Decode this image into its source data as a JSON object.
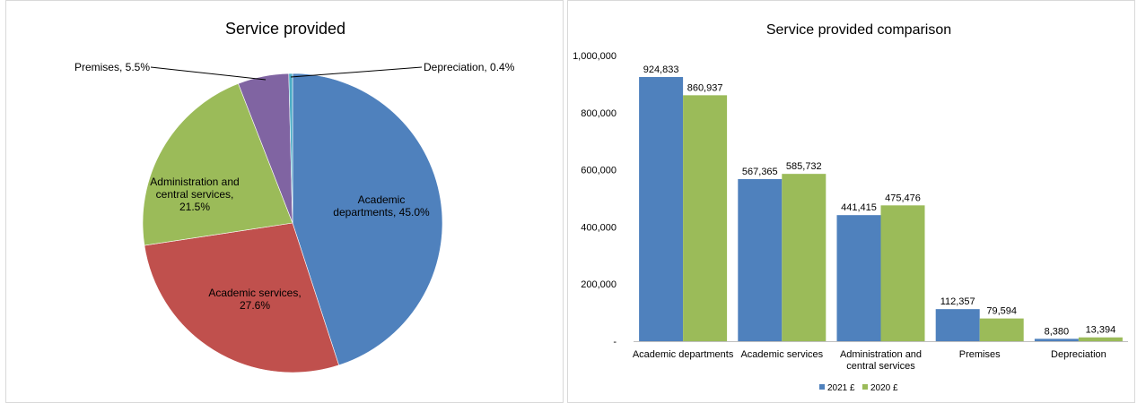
{
  "chart_data": [
    {
      "type": "pie",
      "title": "Service provided",
      "slices": [
        {
          "label_lines": [
            "Academic",
            "departments, 45.0%"
          ],
          "value": 45.0,
          "color": "#4f81bd"
        },
        {
          "label_lines": [
            "Academic services,",
            "27.6%"
          ],
          "value": 27.6,
          "color": "#c0504d"
        },
        {
          "label_lines": [
            "Administration and",
            "central services,",
            "21.5%"
          ],
          "value": 21.5,
          "color": "#9bbb59"
        },
        {
          "label_lines": [
            "Premises, 5.5%"
          ],
          "value": 5.5,
          "color": "#8064a2"
        },
        {
          "label_lines": [
            "Depreciation, 0.4%"
          ],
          "value": 0.4,
          "color": "#4bacc6"
        }
      ]
    },
    {
      "type": "bar",
      "title": "Service provided comparison",
      "categories": [
        [
          "Academic departments"
        ],
        [
          "Academic services"
        ],
        [
          "Administration and",
          "central services"
        ],
        [
          "Premises"
        ],
        [
          "Depreciation"
        ]
      ],
      "series": [
        {
          "name": "2021 £",
          "color": "#4f81bd",
          "values": [
            924833,
            567365,
            441415,
            112357,
            8380
          ],
          "labels": [
            "924,833",
            "567,365",
            "441,415",
            "112,357",
            "8,380"
          ]
        },
        {
          "name": "2020 £",
          "color": "#9bbb59",
          "values": [
            860937,
            585732,
            475476,
            79594,
            13394
          ],
          "labels": [
            "860,937",
            "585,732",
            "475,476",
            "79,594",
            "13,394"
          ]
        }
      ],
      "ylim": [
        0,
        1000000
      ],
      "yticks": [
        0,
        200000,
        400000,
        600000,
        800000,
        1000000
      ],
      "ytick_labels": [
        "-",
        "200,000",
        "400,000",
        "600,000",
        "800,000",
        "1,000,000"
      ],
      "grid": false,
      "legend_position": "bottom"
    }
  ]
}
